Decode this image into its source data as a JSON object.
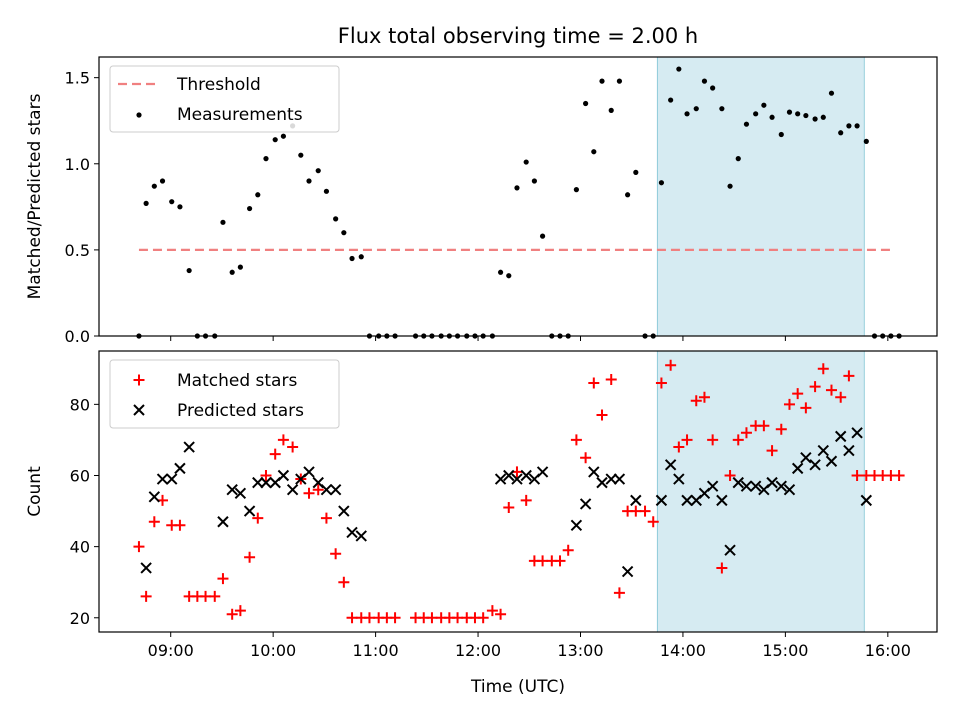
{
  "figure": {
    "title": "Flux total observing time = 2.00 h",
    "xlabel": "Time (UTC)",
    "shade_color": "#add8e6",
    "x_ticks": [
      {
        "value": 9,
        "label": "09:00"
      },
      {
        "value": 10,
        "label": "10:00"
      },
      {
        "value": 11,
        "label": "11:00"
      },
      {
        "value": 12,
        "label": "12:00"
      },
      {
        "value": 13,
        "label": "13:00"
      },
      {
        "value": 14,
        "label": "14:00"
      },
      {
        "value": 15,
        "label": "15:00"
      },
      {
        "value": 16,
        "label": "16:00"
      }
    ]
  },
  "chart_data": [
    {
      "type": "scatter",
      "ylabel": "Matched/Predicted stars",
      "xlim": [
        8.3,
        16.48
      ],
      "ylim": [
        0,
        1.62
      ],
      "y_ticks": [
        {
          "value": 0.0,
          "label": "0.0"
        },
        {
          "value": 0.5,
          "label": "0.5"
        },
        {
          "value": 1.0,
          "label": "1.0"
        },
        {
          "value": 1.5,
          "label": "1.5"
        }
      ],
      "shaded_region": [
        13.75,
        15.77
      ],
      "legend_position": "top-left",
      "threshold": {
        "name": "Threshold",
        "value": 0.5,
        "x_range": [
          8.69,
          16.06
        ],
        "color": "#f08080"
      },
      "series": [
        {
          "name": "Measurements",
          "color": "#000000",
          "points": [
            [
              8.69,
              0.0
            ],
            [
              8.76,
              0.77
            ],
            [
              8.84,
              0.87
            ],
            [
              8.92,
              0.9
            ],
            [
              9.01,
              0.78
            ],
            [
              9.09,
              0.75
            ],
            [
              9.18,
              0.38
            ],
            [
              9.26,
              0.0
            ],
            [
              9.34,
              0.0
            ],
            [
              9.43,
              0.0
            ],
            [
              9.51,
              0.66
            ],
            [
              9.6,
              0.37
            ],
            [
              9.68,
              0.4
            ],
            [
              9.77,
              0.74
            ],
            [
              9.85,
              0.82
            ],
            [
              9.93,
              1.03
            ],
            [
              10.02,
              1.14
            ],
            [
              10.1,
              1.16
            ],
            [
              10.19,
              1.22
            ],
            [
              10.27,
              1.05
            ],
            [
              10.35,
              0.9
            ],
            [
              10.44,
              0.96
            ],
            [
              10.52,
              0.84
            ],
            [
              10.61,
              0.68
            ],
            [
              10.69,
              0.6
            ],
            [
              10.77,
              0.45
            ],
            [
              10.86,
              0.46
            ],
            [
              10.94,
              0.0
            ],
            [
              11.03,
              0.0
            ],
            [
              11.11,
              0.0
            ],
            [
              11.19,
              0.0
            ],
            [
              11.39,
              0.0
            ],
            [
              11.47,
              0.0
            ],
            [
              11.55,
              0.0
            ],
            [
              11.64,
              0.0
            ],
            [
              11.72,
              0.0
            ],
            [
              11.8,
              0.0
            ],
            [
              11.89,
              0.0
            ],
            [
              11.97,
              0.0
            ],
            [
              12.05,
              0.0
            ],
            [
              12.14,
              0.0
            ],
            [
              12.22,
              0.37
            ],
            [
              12.3,
              0.35
            ],
            [
              12.38,
              0.86
            ],
            [
              12.47,
              1.01
            ],
            [
              12.55,
              0.9
            ],
            [
              12.63,
              0.58
            ],
            [
              12.72,
              0.0
            ],
            [
              12.8,
              0.0
            ],
            [
              12.88,
              0.0
            ],
            [
              12.96,
              0.85
            ],
            [
              13.05,
              1.35
            ],
            [
              13.13,
              1.07
            ],
            [
              13.21,
              1.48
            ],
            [
              13.3,
              1.31
            ],
            [
              13.38,
              1.48
            ],
            [
              13.46,
              0.82
            ],
            [
              13.54,
              0.95
            ],
            [
              13.63,
              0.0
            ],
            [
              13.71,
              0.0
            ],
            [
              13.79,
              0.89
            ],
            [
              13.88,
              1.37
            ],
            [
              13.96,
              1.55
            ],
            [
              14.04,
              1.29
            ],
            [
              14.13,
              1.32
            ],
            [
              14.21,
              1.48
            ],
            [
              14.29,
              1.44
            ],
            [
              14.38,
              1.32
            ],
            [
              14.46,
              0.87
            ],
            [
              14.54,
              1.03
            ],
            [
              14.62,
              1.23
            ],
            [
              14.71,
              1.29
            ],
            [
              14.79,
              1.34
            ],
            [
              14.87,
              1.27
            ],
            [
              14.96,
              1.17
            ],
            [
              15.04,
              1.3
            ],
            [
              15.12,
              1.29
            ],
            [
              15.2,
              1.28
            ],
            [
              15.29,
              1.26
            ],
            [
              15.37,
              1.27
            ],
            [
              15.45,
              1.41
            ],
            [
              15.54,
              1.18
            ],
            [
              15.62,
              1.22
            ],
            [
              15.7,
              1.22
            ],
            [
              15.79,
              1.13
            ],
            [
              15.87,
              0.0
            ],
            [
              15.95,
              0.0
            ],
            [
              16.03,
              0.0
            ],
            [
              16.11,
              0.0
            ]
          ]
        }
      ]
    },
    {
      "type": "scatter",
      "ylabel": "Count",
      "xlim": [
        8.3,
        16.48
      ],
      "ylim": [
        16,
        95
      ],
      "y_ticks": [
        {
          "value": 20,
          "label": "20"
        },
        {
          "value": 40,
          "label": "40"
        },
        {
          "value": 60,
          "label": "60"
        },
        {
          "value": 80,
          "label": "80"
        }
      ],
      "shaded_region": [
        13.75,
        15.77
      ],
      "legend_position": "top-left",
      "series": [
        {
          "name": "Matched stars",
          "color": "#ff0000",
          "marker": "plus",
          "points": [
            [
              8.69,
              40
            ],
            [
              8.76,
              26
            ],
            [
              8.84,
              47
            ],
            [
              8.92,
              53
            ],
            [
              9.01,
              46
            ],
            [
              9.09,
              46
            ],
            [
              9.18,
              26
            ],
            [
              9.26,
              26
            ],
            [
              9.34,
              26
            ],
            [
              9.43,
              26
            ],
            [
              9.51,
              31
            ],
            [
              9.6,
              21
            ],
            [
              9.68,
              22
            ],
            [
              9.77,
              37
            ],
            [
              9.85,
              48
            ],
            [
              9.93,
              60
            ],
            [
              10.02,
              66
            ],
            [
              10.1,
              70
            ],
            [
              10.19,
              68
            ],
            [
              10.27,
              59
            ],
            [
              10.35,
              55
            ],
            [
              10.44,
              56
            ],
            [
              10.52,
              48
            ],
            [
              10.61,
              38
            ],
            [
              10.69,
              30
            ],
            [
              10.77,
              20
            ],
            [
              10.86,
              20
            ],
            [
              10.94,
              20
            ],
            [
              11.03,
              20
            ],
            [
              11.11,
              20
            ],
            [
              11.19,
              20
            ],
            [
              11.39,
              20
            ],
            [
              11.47,
              20
            ],
            [
              11.55,
              20
            ],
            [
              11.64,
              20
            ],
            [
              11.72,
              20
            ],
            [
              11.8,
              20
            ],
            [
              11.89,
              20
            ],
            [
              11.97,
              20
            ],
            [
              12.05,
              20
            ],
            [
              12.14,
              22
            ],
            [
              12.22,
              21
            ],
            [
              12.3,
              51
            ],
            [
              12.38,
              61
            ],
            [
              12.47,
              53
            ],
            [
              12.55,
              36
            ],
            [
              12.63,
              36
            ],
            [
              12.72,
              36
            ],
            [
              12.8,
              36
            ],
            [
              12.88,
              39
            ],
            [
              12.96,
              70
            ],
            [
              13.05,
              65
            ],
            [
              13.13,
              86
            ],
            [
              13.21,
              77
            ],
            [
              13.3,
              87
            ],
            [
              13.38,
              27
            ],
            [
              13.46,
              50
            ],
            [
              13.54,
              50
            ],
            [
              13.63,
              50
            ],
            [
              13.71,
              47
            ],
            [
              13.79,
              86
            ],
            [
              13.88,
              91
            ],
            [
              13.96,
              68
            ],
            [
              14.04,
              70
            ],
            [
              14.13,
              81
            ],
            [
              14.21,
              82
            ],
            [
              14.29,
              70
            ],
            [
              14.38,
              34
            ],
            [
              14.46,
              60
            ],
            [
              14.54,
              70
            ],
            [
              14.62,
              72
            ],
            [
              14.71,
              74
            ],
            [
              14.79,
              74
            ],
            [
              14.87,
              67
            ],
            [
              14.96,
              73
            ],
            [
              15.04,
              80
            ],
            [
              15.12,
              83
            ],
            [
              15.2,
              79
            ],
            [
              15.29,
              85
            ],
            [
              15.37,
              90
            ],
            [
              15.45,
              84
            ],
            [
              15.54,
              82
            ],
            [
              15.62,
              88
            ],
            [
              15.7,
              60
            ],
            [
              15.79,
              60
            ],
            [
              15.87,
              60
            ],
            [
              15.95,
              60
            ],
            [
              16.03,
              60
            ],
            [
              16.11,
              60
            ]
          ]
        },
        {
          "name": "Predicted stars",
          "color": "#000000",
          "marker": "x",
          "points": [
            [
              8.76,
              34
            ],
            [
              8.84,
              54
            ],
            [
              8.92,
              59
            ],
            [
              9.01,
              59
            ],
            [
              9.09,
              62
            ],
            [
              9.18,
              68
            ],
            [
              9.51,
              47
            ],
            [
              9.6,
              56
            ],
            [
              9.68,
              55
            ],
            [
              9.77,
              50
            ],
            [
              9.85,
              58
            ],
            [
              9.93,
              58
            ],
            [
              10.02,
              58
            ],
            [
              10.1,
              60
            ],
            [
              10.19,
              56
            ],
            [
              10.27,
              59
            ],
            [
              10.35,
              61
            ],
            [
              10.44,
              58
            ],
            [
              10.52,
              56
            ],
            [
              10.61,
              56
            ],
            [
              10.69,
              50
            ],
            [
              10.77,
              44
            ],
            [
              10.86,
              43
            ],
            [
              12.22,
              59
            ],
            [
              12.3,
              60
            ],
            [
              12.38,
              59
            ],
            [
              12.47,
              60
            ],
            [
              12.55,
              59
            ],
            [
              12.63,
              61
            ],
            [
              12.96,
              46
            ],
            [
              13.05,
              52
            ],
            [
              13.13,
              61
            ],
            [
              13.21,
              58
            ],
            [
              13.3,
              59
            ],
            [
              13.38,
              59
            ],
            [
              13.46,
              33
            ],
            [
              13.54,
              53
            ],
            [
              13.79,
              53
            ],
            [
              13.88,
              63
            ],
            [
              13.96,
              59
            ],
            [
              14.04,
              53
            ],
            [
              14.13,
              53
            ],
            [
              14.21,
              55
            ],
            [
              14.29,
              57
            ],
            [
              14.38,
              53
            ],
            [
              14.46,
              39
            ],
            [
              14.54,
              58
            ],
            [
              14.62,
              57
            ],
            [
              14.71,
              57
            ],
            [
              14.79,
              56
            ],
            [
              14.87,
              58
            ],
            [
              14.96,
              57
            ],
            [
              15.04,
              56
            ],
            [
              15.12,
              62
            ],
            [
              15.2,
              65
            ],
            [
              15.29,
              63
            ],
            [
              15.37,
              67
            ],
            [
              15.45,
              64
            ],
            [
              15.54,
              71
            ],
            [
              15.62,
              67
            ],
            [
              15.7,
              72
            ],
            [
              15.79,
              53
            ]
          ]
        }
      ]
    }
  ]
}
